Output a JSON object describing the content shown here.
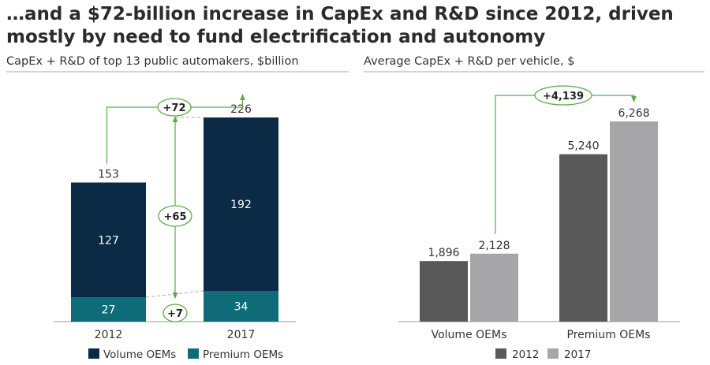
{
  "title": "…and a $72-billion increase in CapEx and R&D since 2012, driven mostly by need to fund electrification and autonomy",
  "colors": {
    "volume": "#0b2a45",
    "premium": "#0e6b77",
    "dark_grey": "#595959",
    "light_grey": "#a6a6a8",
    "annotation": "#5aab46"
  },
  "chart_data": [
    {
      "type": "bar",
      "stacked": true,
      "title": "CapEx + R&D of top 13 public automakers, $billion",
      "categories": [
        "2012",
        "2017"
      ],
      "series": [
        {
          "name": "Premium OEMs",
          "values": [
            27,
            34
          ]
        },
        {
          "name": "Volume OEMs",
          "values": [
            127,
            192
          ]
        }
      ],
      "totals": [
        153,
        226
      ],
      "ylim": [
        0,
        240
      ],
      "annotations": {
        "total_change": "+72",
        "volume_change": "+65",
        "premium_change": "+7"
      },
      "legend": [
        "Volume OEMs",
        "Premium OEMs"
      ],
      "legend_position": "bottom"
    },
    {
      "type": "bar",
      "title": "Average CapEx + R&D per vehicle, $",
      "categories": [
        "Volume OEMs",
        "Premium OEMs"
      ],
      "series": [
        {
          "name": "2012",
          "values": [
            1896,
            5240
          ]
        },
        {
          "name": "2017",
          "values": [
            2128,
            6268
          ]
        }
      ],
      "value_labels": [
        [
          "1,896",
          "5,240"
        ],
        [
          "2,128",
          "6,268"
        ]
      ],
      "ylim": [
        0,
        6600
      ],
      "annotations": {
        "change": "+4,139"
      },
      "legend": [
        "2012",
        "2017"
      ],
      "legend_position": "bottom"
    }
  ]
}
